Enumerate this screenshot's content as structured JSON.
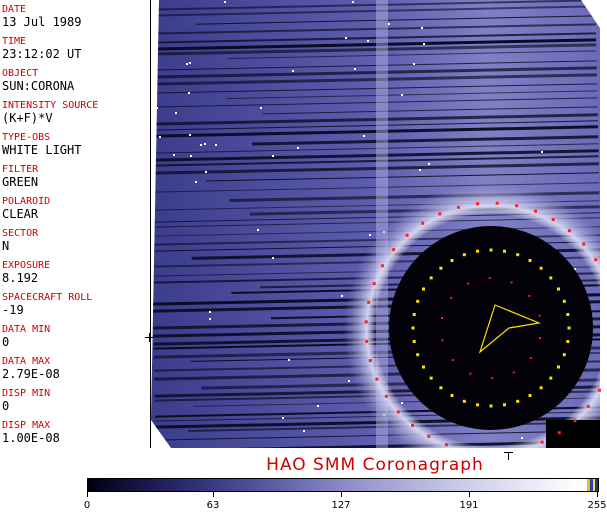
{
  "metadata": [
    {
      "label": "DATE",
      "value": "13 Jul 1989"
    },
    {
      "label": "TIME",
      "value": "23:12:02 UT"
    },
    {
      "label": "OBJECT",
      "value": "SUN:CORONA"
    },
    {
      "label": "INTENSITY SOURCE",
      "value": "(K+F)*V"
    },
    {
      "label": "TYPE-OBS",
      "value": "WHITE LIGHT"
    },
    {
      "label": "FILTER",
      "value": "GREEN"
    },
    {
      "label": "POLAROID",
      "value": "CLEAR"
    },
    {
      "label": "SECTOR",
      "value": "N"
    },
    {
      "label": "EXPOSURE",
      "value": "8.192"
    },
    {
      "label": "SPACECRAFT ROLL",
      "value": "-19"
    },
    {
      "label": "DATA MIN",
      "value": "0"
    },
    {
      "label": "DATA MAX",
      "value": "2.79E-08"
    },
    {
      "label": "DISP MIN",
      "value": "0"
    },
    {
      "label": "DISP MAX",
      "value": "1.00E-08"
    }
  ],
  "title": "HAO  SMM Coronagraph",
  "colorbar": {
    "ticks": [
      "0",
      "63",
      "127",
      "191",
      "255"
    ],
    "tick_values": [
      0,
      63,
      127,
      191,
      255
    ],
    "max": 255
  },
  "colors": {
    "label_red": "#d00000",
    "occulter_red_marks": "#ff2020",
    "occulter_yellow_marks": "#ffe000",
    "corona_blue": "#5a5aa8"
  }
}
